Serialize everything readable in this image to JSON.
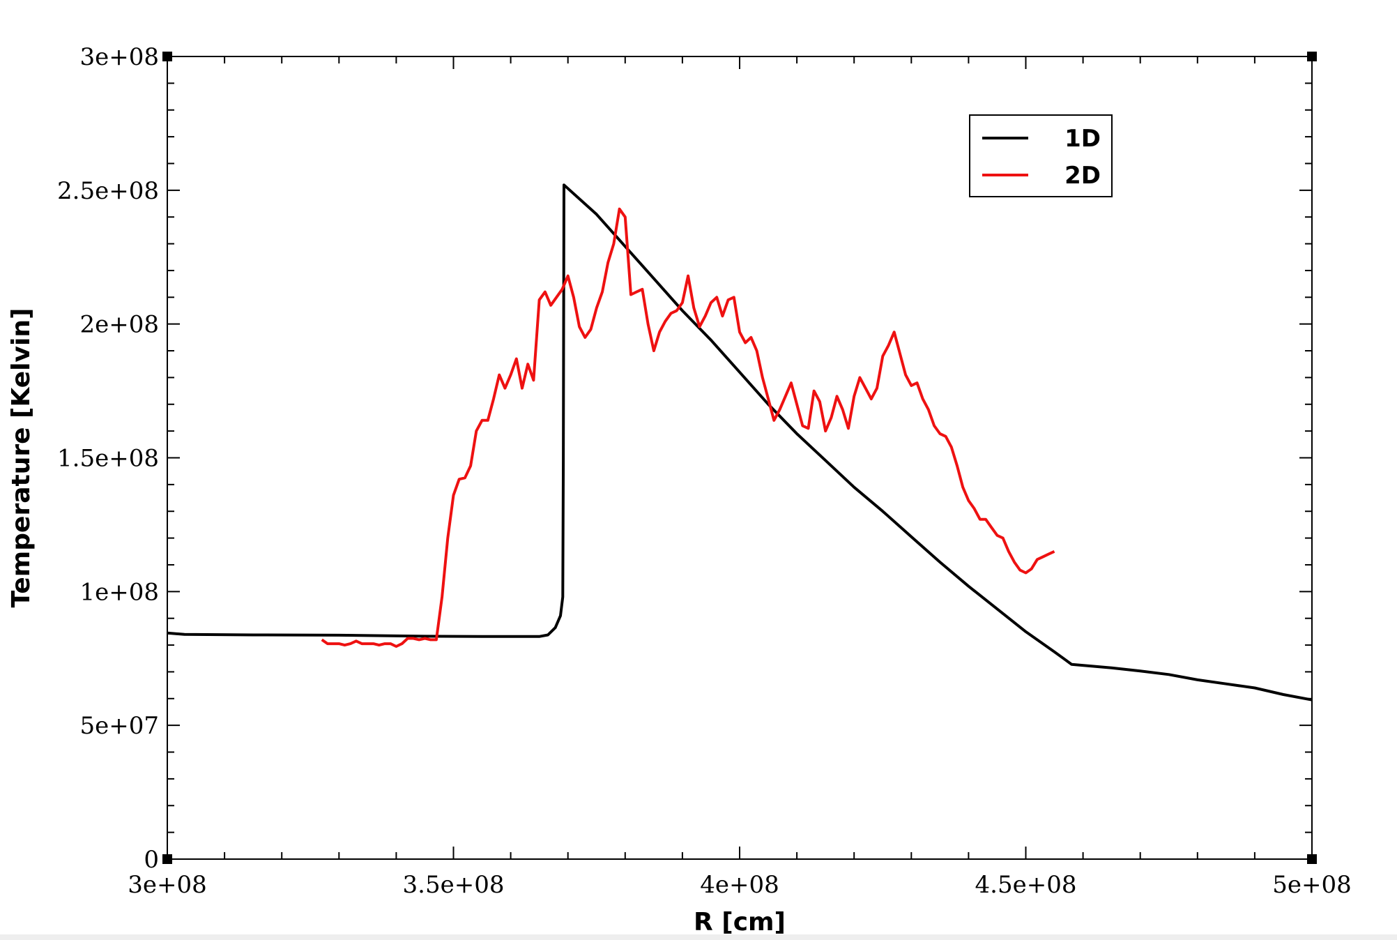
{
  "chart_data": {
    "type": "line",
    "title": "",
    "xlabel": "R [cm]",
    "ylabel": "Temperature [Kelvin]",
    "xlim": [
      300000000,
      500000000
    ],
    "ylim": [
      0,
      300000000
    ],
    "x_ticks": [
      300000000,
      350000000,
      400000000,
      450000000,
      500000000
    ],
    "x_tick_labels": [
      "3e+08",
      "3.5e+08",
      "4e+08",
      "4.5e+08",
      "5e+08"
    ],
    "y_ticks": [
      0,
      50000000,
      100000000,
      150000000,
      200000000,
      250000000,
      300000000
    ],
    "y_tick_labels": [
      "0",
      "5e+07",
      "1e+08",
      "1.5e+08",
      "2e+08",
      "2.5e+08",
      "3e+08"
    ],
    "x_minor_per_major": 5,
    "y_minor_per_major": 5,
    "grid": false,
    "legend_position": "top-right",
    "series": [
      {
        "name": "1D",
        "color": "#000000",
        "points": [
          [
            300000000,
            84500000
          ],
          [
            303000000,
            84000000
          ],
          [
            315000000,
            83800000
          ],
          [
            330000000,
            83700000
          ],
          [
            345000000,
            83300000
          ],
          [
            355000000,
            83200000
          ],
          [
            365000000,
            83200000
          ],
          [
            366500000,
            83800000
          ],
          [
            367800000,
            86500000
          ],
          [
            368700000,
            91000000
          ],
          [
            369100000,
            98000000
          ],
          [
            369200000,
            150000000
          ],
          [
            369300000,
            252000000
          ],
          [
            375000000,
            241000000
          ],
          [
            380000000,
            229000000
          ],
          [
            385000000,
            217000000
          ],
          [
            390000000,
            205000000
          ],
          [
            395000000,
            194000000
          ],
          [
            400000000,
            182000000
          ],
          [
            405000000,
            170000000
          ],
          [
            410000000,
            159000000
          ],
          [
            415000000,
            149000000
          ],
          [
            420000000,
            139000000
          ],
          [
            425000000,
            130000000
          ],
          [
            430000000,
            120500000
          ],
          [
            435000000,
            111000000
          ],
          [
            440000000,
            102000000
          ],
          [
            445000000,
            93500000
          ],
          [
            450000000,
            85000000
          ],
          [
            455000000,
            77500000
          ],
          [
            458000000,
            72800000
          ],
          [
            465000000,
            71500000
          ],
          [
            470000000,
            70300000
          ],
          [
            475000000,
            69000000
          ],
          [
            480000000,
            67000000
          ],
          [
            485000000,
            65500000
          ],
          [
            490000000,
            64000000
          ],
          [
            495000000,
            61500000
          ],
          [
            500000000,
            59500000
          ]
        ]
      },
      {
        "name": "2D",
        "color": "#ee1111",
        "points": [
          [
            327000000,
            82000000
          ],
          [
            328000000,
            80500000
          ],
          [
            330000000,
            80500000
          ],
          [
            331000000,
            80000000
          ],
          [
            332000000,
            80500000
          ],
          [
            333000000,
            81500000
          ],
          [
            334000000,
            80500000
          ],
          [
            335000000,
            80500000
          ],
          [
            336000000,
            80500000
          ],
          [
            337000000,
            80000000
          ],
          [
            338000000,
            80500000
          ],
          [
            339000000,
            80500000
          ],
          [
            340000000,
            79500000
          ],
          [
            341000000,
            80500000
          ],
          [
            342000000,
            82500000
          ],
          [
            343000000,
            82500000
          ],
          [
            344000000,
            82000000
          ],
          [
            345000000,
            82500000
          ],
          [
            346000000,
            82000000
          ],
          [
            347000000,
            82000000
          ],
          [
            348000000,
            98000000
          ],
          [
            349000000,
            120000000
          ],
          [
            350000000,
            136000000
          ],
          [
            351000000,
            142000000
          ],
          [
            352000000,
            142500000
          ],
          [
            353000000,
            147000000
          ],
          [
            354000000,
            160000000
          ],
          [
            355000000,
            164000000
          ],
          [
            356000000,
            164000000
          ],
          [
            357000000,
            172000000
          ],
          [
            358000000,
            181000000
          ],
          [
            359000000,
            176000000
          ],
          [
            360000000,
            181000000
          ],
          [
            361000000,
            187000000
          ],
          [
            362000000,
            176000000
          ],
          [
            363000000,
            185000000
          ],
          [
            364000000,
            179000000
          ],
          [
            365000000,
            209000000
          ],
          [
            366000000,
            212000000
          ],
          [
            367000000,
            207000000
          ],
          [
            368000000,
            210000000
          ],
          [
            369000000,
            213000000
          ],
          [
            370000000,
            218000000
          ],
          [
            371000000,
            210000000
          ],
          [
            372000000,
            199000000
          ],
          [
            373000000,
            195000000
          ],
          [
            374000000,
            198000000
          ],
          [
            375000000,
            206000000
          ],
          [
            376000000,
            212000000
          ],
          [
            377000000,
            223000000
          ],
          [
            378000000,
            230000000
          ],
          [
            379000000,
            243000000
          ],
          [
            380000000,
            240000000
          ],
          [
            381000000,
            211000000
          ],
          [
            382000000,
            212000000
          ],
          [
            383000000,
            213000000
          ],
          [
            384000000,
            200000000
          ],
          [
            385000000,
            190000000
          ],
          [
            386000000,
            197000000
          ],
          [
            387000000,
            201000000
          ],
          [
            388000000,
            204000000
          ],
          [
            389000000,
            205000000
          ],
          [
            390000000,
            208000000
          ],
          [
            391000000,
            218000000
          ],
          [
            392000000,
            206000000
          ],
          [
            393000000,
            199000000
          ],
          [
            394000000,
            203000000
          ],
          [
            395000000,
            208000000
          ],
          [
            396000000,
            210000000
          ],
          [
            397000000,
            203000000
          ],
          [
            398000000,
            209000000
          ],
          [
            399000000,
            210000000
          ],
          [
            400000000,
            197000000
          ],
          [
            401000000,
            193000000
          ],
          [
            402000000,
            195000000
          ],
          [
            403000000,
            190000000
          ],
          [
            404000000,
            180000000
          ],
          [
            405000000,
            172000000
          ],
          [
            406000000,
            164000000
          ],
          [
            407000000,
            168000000
          ],
          [
            408000000,
            173000000
          ],
          [
            409000000,
            178000000
          ],
          [
            410000000,
            170000000
          ],
          [
            411000000,
            162000000
          ],
          [
            412000000,
            161000000
          ],
          [
            413000000,
            175000000
          ],
          [
            414000000,
            171000000
          ],
          [
            415000000,
            160000000
          ],
          [
            416000000,
            165000000
          ],
          [
            417000000,
            173000000
          ],
          [
            418000000,
            168000000
          ],
          [
            419000000,
            161000000
          ],
          [
            420000000,
            173000000
          ],
          [
            421000000,
            180000000
          ],
          [
            422000000,
            176000000
          ],
          [
            423000000,
            172000000
          ],
          [
            424000000,
            176000000
          ],
          [
            425000000,
            188000000
          ],
          [
            426000000,
            192000000
          ],
          [
            427000000,
            197000000
          ],
          [
            428000000,
            189000000
          ],
          [
            429000000,
            181000000
          ],
          [
            430000000,
            177000000
          ],
          [
            431000000,
            178000000
          ],
          [
            432000000,
            172000000
          ],
          [
            433000000,
            168000000
          ],
          [
            434000000,
            162000000
          ],
          [
            435000000,
            159000000
          ],
          [
            436000000,
            158000000
          ],
          [
            437000000,
            154000000
          ],
          [
            438000000,
            147000000
          ],
          [
            439000000,
            139000000
          ],
          [
            440000000,
            134000000
          ],
          [
            441000000,
            131000000
          ],
          [
            442000000,
            127000000
          ],
          [
            443000000,
            127000000
          ],
          [
            444000000,
            124000000
          ],
          [
            445000000,
            121000000
          ],
          [
            446000000,
            120000000
          ],
          [
            447000000,
            115000000
          ],
          [
            448000000,
            111000000
          ],
          [
            449000000,
            108000000
          ],
          [
            450000000,
            107000000
          ],
          [
            451000000,
            108500000
          ],
          [
            452000000,
            112000000
          ],
          [
            453000000,
            113000000
          ],
          [
            454000000,
            114000000
          ],
          [
            455000000,
            115000000
          ]
        ]
      }
    ]
  }
}
